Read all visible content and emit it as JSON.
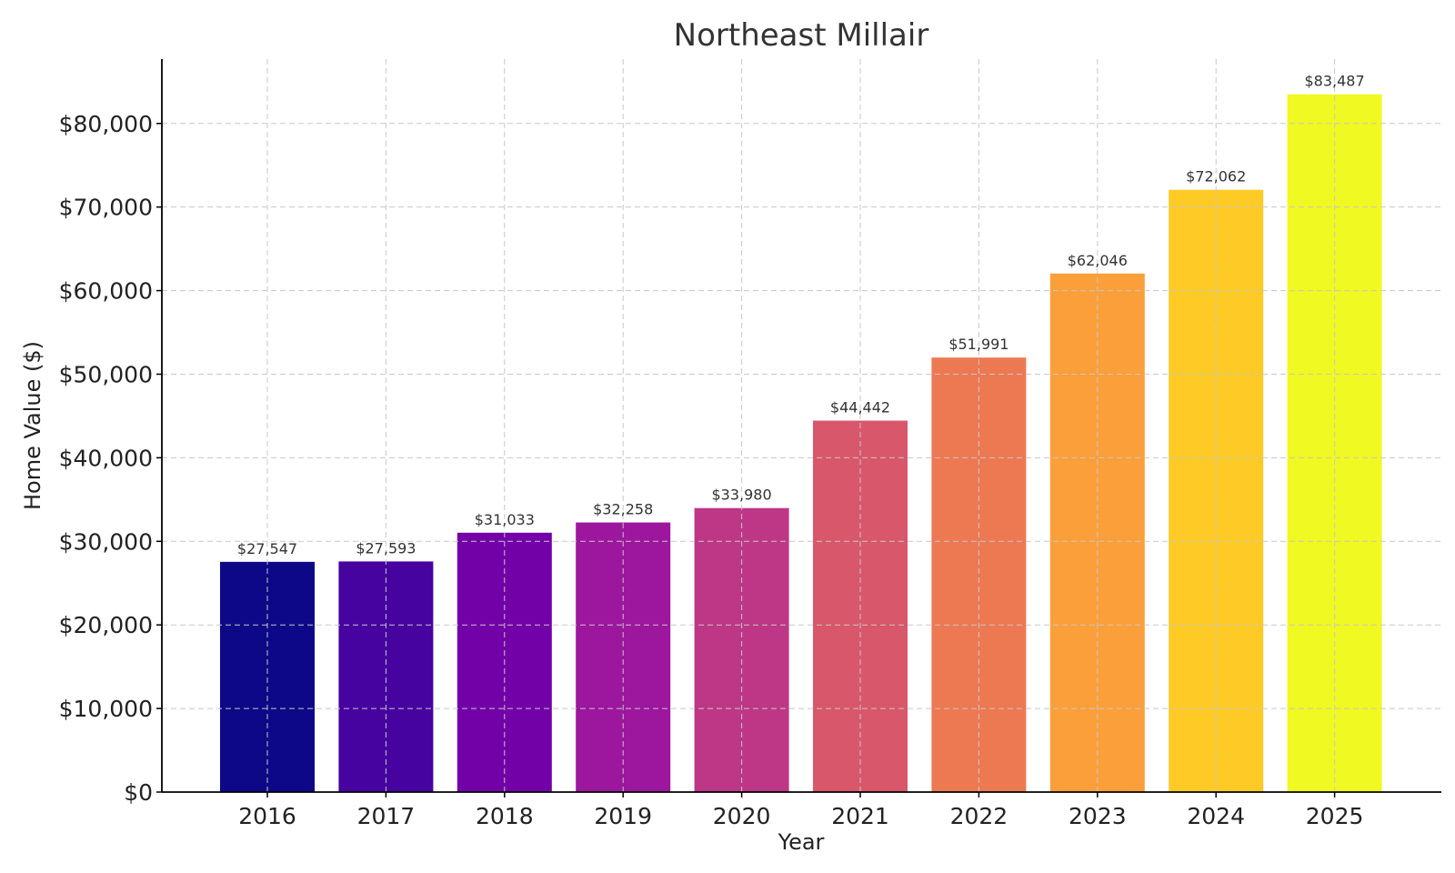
{
  "chart_data": {
    "type": "bar",
    "title": "Northeast Millair",
    "xlabel": "Year",
    "ylabel": "Home Value ($)",
    "categories": [
      "2016",
      "2017",
      "2018",
      "2019",
      "2020",
      "2021",
      "2022",
      "2023",
      "2024",
      "2025"
    ],
    "values": [
      27547,
      27593,
      31033,
      32258,
      33980,
      44442,
      51991,
      62046,
      72062,
      83487
    ],
    "value_labels": [
      "$27,547",
      "$27,593",
      "$31,033",
      "$32,258",
      "$33,980",
      "$44,442",
      "$51,991",
      "$62,046",
      "$72,062",
      "$83,487"
    ],
    "colors": [
      "#0d0887",
      "#46039f",
      "#7201a8",
      "#9c179e",
      "#bd3786",
      "#d8576b",
      "#ed7953",
      "#fb9f3a",
      "#fdca26",
      "#f0f921"
    ],
    "yticks": [
      0,
      10000,
      20000,
      30000,
      40000,
      50000,
      60000,
      70000,
      80000
    ],
    "ytick_labels": [
      "$0",
      "$10,000",
      "$20,000",
      "$30,000",
      "$40,000",
      "$50,000",
      "$60,000",
      "$70,000",
      "$80,000"
    ],
    "ylim": [
      0,
      87700
    ],
    "grid": true
  }
}
